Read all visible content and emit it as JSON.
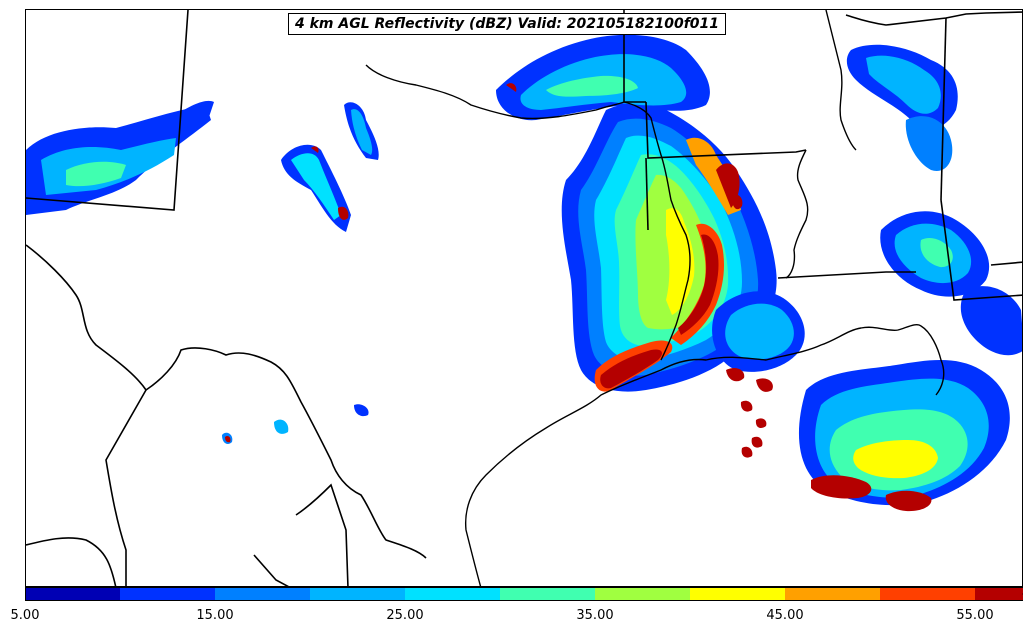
{
  "title": "4 km AGL Reflectivity (dBZ) Valid: 202105182100f011",
  "colorbar": {
    "colors": [
      "#0000b4",
      "#0032ff",
      "#0080ff",
      "#00b4ff",
      "#00e1ff",
      "#40ffb0",
      "#a0ff40",
      "#ffff00",
      "#ffa000",
      "#ff4000",
      "#b40000"
    ],
    "extend_color": "#800000",
    "tick_labels": [
      "5.00",
      "15.00",
      "25.00",
      "35.00",
      "45.00",
      "55.00"
    ]
  }
}
